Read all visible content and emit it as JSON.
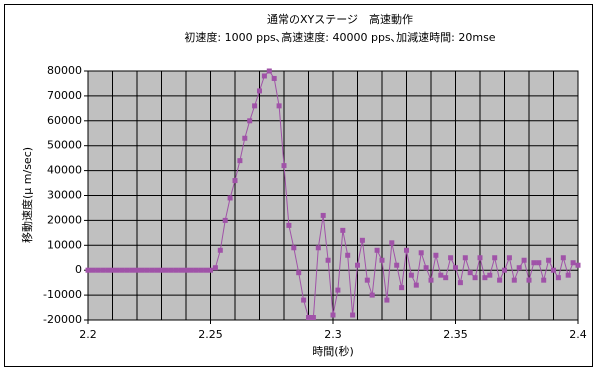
{
  "chart_data": {
    "type": "line",
    "title": "通常のXYステージ　高速動作",
    "subtitle": "初速度: 1000 pps､高速速度: 40000 pps､加減速時間: 20mse",
    "x_label": "時間(秒)",
    "y_label": "移動速度(μ m/sec)",
    "x": [
      2.2,
      2.202,
      2.204,
      2.206,
      2.208,
      2.21,
      2.212,
      2.214,
      2.216,
      2.218,
      2.22,
      2.222,
      2.224,
      2.226,
      2.228,
      2.23,
      2.232,
      2.234,
      2.236,
      2.238,
      2.24,
      2.242,
      2.244,
      2.246,
      2.248,
      2.25,
      2.252,
      2.254,
      2.256,
      2.258,
      2.26,
      2.262,
      2.264,
      2.266,
      2.268,
      2.27,
      2.272,
      2.274,
      2.276,
      2.278,
      2.28,
      2.282,
      2.284,
      2.286,
      2.288,
      2.29,
      2.292,
      2.294,
      2.296,
      2.298,
      2.3,
      2.302,
      2.304,
      2.306,
      2.308,
      2.31,
      2.312,
      2.314,
      2.316,
      2.318,
      2.32,
      2.322,
      2.324,
      2.326,
      2.328,
      2.33,
      2.332,
      2.334,
      2.336,
      2.338,
      2.34,
      2.342,
      2.344,
      2.346,
      2.348,
      2.35,
      2.352,
      2.354,
      2.356,
      2.358,
      2.36,
      2.362,
      2.364,
      2.366,
      2.368,
      2.37,
      2.372,
      2.374,
      2.376,
      2.378,
      2.38,
      2.382,
      2.384,
      2.386,
      2.388,
      2.39,
      2.392,
      2.394,
      2.396,
      2.398,
      2.4
    ],
    "series": [
      {
        "color": "#a052a8",
        "values": [
          0,
          0,
          0,
          0,
          0,
          0,
          0,
          0,
          0,
          0,
          0,
          0,
          0,
          0,
          0,
          0,
          0,
          0,
          0,
          0,
          0,
          0,
          0,
          0,
          0,
          0,
          1000,
          8000,
          20000,
          29000,
          36000,
          44000,
          53000,
          60000,
          66000,
          72000,
          78000,
          80000,
          77000,
          66000,
          42000,
          18000,
          9000,
          -1000,
          -12000,
          -19000,
          -19000,
          9000,
          22000,
          4000,
          -18000,
          -8000,
          16000,
          6000,
          -18000,
          2000,
          12000,
          -4000,
          -10000,
          8000,
          4000,
          -12000,
          11000,
          2000,
          -7000,
          8000,
          -2000,
          -6000,
          7000,
          1000,
          -4000,
          6000,
          -2000,
          -3000,
          5000,
          1000,
          -5000,
          5000,
          -1000,
          -3000,
          5000,
          -3000,
          -2000,
          5000,
          -4000,
          0,
          5000,
          -4000,
          1000,
          4000,
          -4000,
          3000,
          3000,
          -4000,
          4000,
          0,
          -3000,
          5000,
          -2000,
          3000,
          2000
        ]
      }
    ],
    "xlim": [
      2.2,
      2.4
    ],
    "xticks": [
      2.2,
      2.25,
      2.3,
      2.35,
      2.4
    ],
    "xgrid": [
      2.2,
      2.21,
      2.22,
      2.23,
      2.24,
      2.25,
      2.26,
      2.27,
      2.28,
      2.29,
      2.3,
      2.31,
      2.32,
      2.33,
      2.34,
      2.35,
      2.36,
      2.37,
      2.38,
      2.39,
      2.4
    ],
    "ylim": [
      -20000,
      80000
    ],
    "yticks": [
      -20000,
      -10000,
      0,
      10000,
      20000,
      30000,
      40000,
      50000,
      60000,
      70000,
      80000
    ],
    "grid": true
  }
}
